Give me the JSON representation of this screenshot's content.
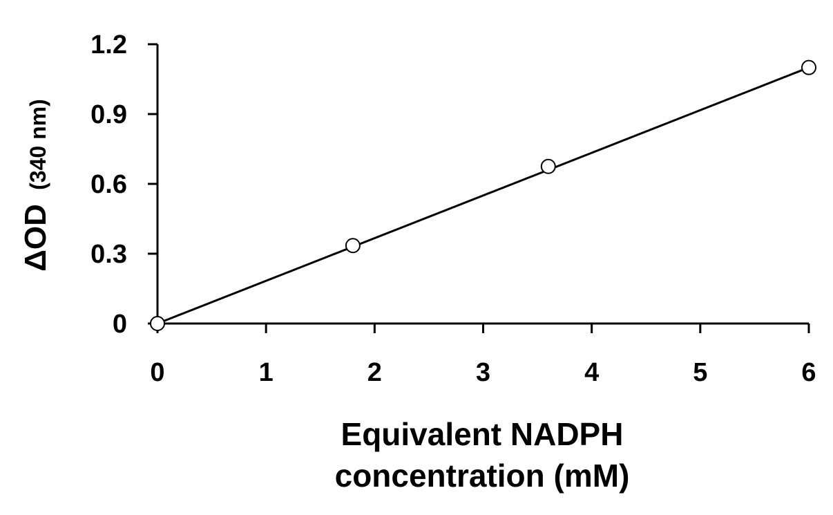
{
  "chart_data": {
    "type": "scatter",
    "title": "",
    "xlabel": [
      "Equivalent NADPH",
      "concentration (mM)"
    ],
    "ylabel": {
      "main": "ΔOD",
      "sub": "(340 nm)"
    },
    "xlim": [
      0,
      6
    ],
    "ylim": [
      0,
      1.2
    ],
    "x_ticks": [
      "0",
      "1",
      "2",
      "3",
      "4",
      "5",
      "6"
    ],
    "y_ticks": [
      "0",
      "0.3",
      "0.6",
      "0.9",
      "1.2"
    ],
    "series": [
      {
        "x": [
          0,
          1.8,
          3.6,
          6.0
        ],
        "y": [
          0,
          0.335,
          0.675,
          1.1
        ],
        "marker": "open-circle"
      }
    ],
    "trendline": {
      "x": [
        0,
        6
      ],
      "y": [
        0,
        1.1
      ]
    },
    "grid": false,
    "legend": "none",
    "colors": {
      "line": "#000000",
      "marker_fill": "#ffffff"
    }
  }
}
